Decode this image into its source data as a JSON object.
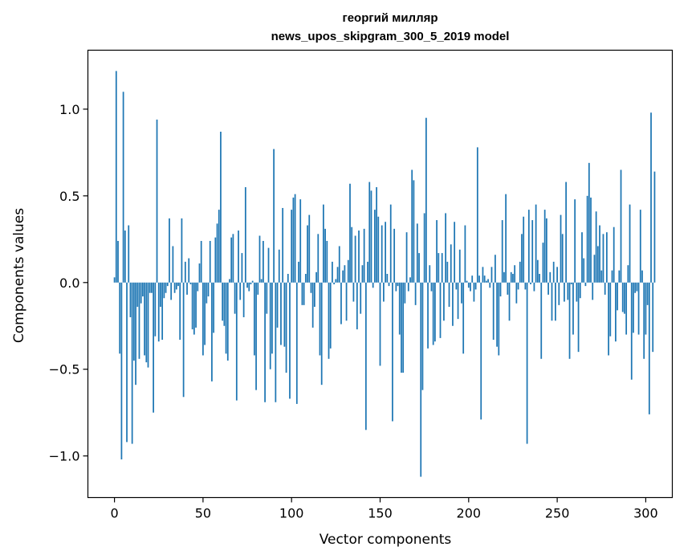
{
  "chart_data": {
    "type": "bar",
    "title": "георгий милляр",
    "subtitle": "news_upos_skipgram_300_5_2019 model",
    "xlabel": "Vector components",
    "ylabel": "Components values",
    "xlim": [
      -15,
      315
    ],
    "ylim": [
      -1.24,
      1.34
    ],
    "xticks": [
      0,
      50,
      100,
      150,
      200,
      250,
      300
    ],
    "xtick_labels": [
      "0",
      "50",
      "100",
      "150",
      "200",
      "250",
      "300"
    ],
    "yticks": [
      -1.0,
      -0.5,
      0.0,
      0.5,
      1.0
    ],
    "ytick_labels": [
      "−1.0",
      "−0.5",
      "0.0",
      "0.5",
      "1.0"
    ],
    "grid": false,
    "bar_color": "#1f77b4",
    "x_start": 0,
    "values": [
      0.03,
      1.22,
      0.24,
      -0.41,
      -1.02,
      1.1,
      0.3,
      -0.92,
      0.33,
      -0.2,
      -0.93,
      -0.45,
      -0.59,
      -0.14,
      -0.44,
      -0.12,
      -0.08,
      -0.42,
      -0.46,
      -0.49,
      -0.06,
      -0.06,
      -0.75,
      -0.31,
      0.94,
      -0.34,
      -0.14,
      -0.33,
      -0.09,
      -0.06,
      -0.02,
      0.37,
      -0.1,
      0.21,
      -0.06,
      -0.04,
      -0.02,
      -0.33,
      0.37,
      -0.66,
      0.12,
      -0.07,
      0.14,
      -0.01,
      -0.27,
      -0.3,
      -0.26,
      -0.05,
      0.11,
      0.24,
      -0.42,
      -0.36,
      -0.12,
      -0.08,
      0.24,
      -0.57,
      -0.29,
      0.26,
      0.34,
      0.42,
      0.87,
      -0.22,
      -0.25,
      -0.41,
      -0.45,
      0.02,
      0.26,
      0.28,
      -0.18,
      -0.68,
      0.3,
      -0.1,
      0.17,
      -0.2,
      0.55,
      -0.03,
      -0.05,
      -0.01,
      0.01,
      -0.42,
      -0.62,
      -0.07,
      0.27,
      0.02,
      0.24,
      -0.69,
      -0.18,
      0.2,
      -0.5,
      -0.41,
      0.77,
      -0.69,
      -0.26,
      0.19,
      -0.36,
      0.43,
      -0.37,
      -0.52,
      0.05,
      -0.67,
      0.42,
      0.49,
      0.51,
      -0.7,
      0.12,
      0.48,
      -0.13,
      -0.13,
      0.05,
      0.33,
      0.39,
      -0.06,
      -0.26,
      -0.14,
      0.06,
      0.28,
      -0.42,
      -0.59,
      0.45,
      0.31,
      0.24,
      -0.44,
      -0.38,
      0.12,
      -0.01,
      0.02,
      0.09,
      0.21,
      -0.24,
      0.07,
      0.1,
      -0.22,
      0.13,
      0.57,
      0.32,
      -0.11,
      0.27,
      -0.27,
      0.3,
      -0.18,
      0.1,
      0.31,
      -0.85,
      0.12,
      0.58,
      0.53,
      -0.03,
      0.42,
      0.55,
      0.38,
      -0.48,
      0.33,
      -0.11,
      0.35,
      0.05,
      -0.02,
      0.45,
      -0.8,
      0.31,
      -0.05,
      -0.02,
      -0.3,
      -0.52,
      -0.52,
      -0.12,
      0.29,
      -0.05,
      0.03,
      0.65,
      0.59,
      -0.13,
      0.34,
      0.17,
      -1.12,
      -0.62,
      0.4,
      0.95,
      -0.38,
      0.1,
      -0.05,
      -0.36,
      -0.34,
      0.36,
      0.17,
      -0.32,
      0.17,
      -0.22,
      0.4,
      0.12,
      -0.14,
      0.22,
      -0.25,
      0.35,
      -0.04,
      -0.21,
      0.19,
      -0.12,
      -0.41,
      0.33,
      0.01,
      -0.03,
      -0.05,
      0.04,
      -0.11,
      -0.04,
      0.78,
      0.04,
      -0.79,
      0.09,
      0.04,
      0.01,
      0.02,
      -0.03,
      0.09,
      -0.33,
      0.16,
      -0.37,
      -0.42,
      -0.08,
      0.36,
      0.06,
      0.51,
      -0.07,
      -0.22,
      0.06,
      0.05,
      0.1,
      -0.12,
      -0.04,
      0.12,
      0.28,
      0.38,
      -0.04,
      -0.93,
      0.42,
      -0.01,
      0.36,
      -0.05,
      0.45,
      0.13,
      0.05,
      -0.44,
      0.23,
      0.42,
      0.37,
      -0.07,
      0.06,
      -0.22,
      0.12,
      -0.22,
      0.09,
      -0.13,
      0.39,
      0.28,
      -0.11,
      0.58,
      -0.1,
      -0.44,
      -0.01,
      -0.3,
      0.48,
      -0.11,
      -0.4,
      -0.09,
      0.29,
      0.14,
      -0.02,
      0.5,
      0.69,
      0.49,
      -0.1,
      0.16,
      0.41,
      0.21,
      0.33,
      0.07,
      0.28,
      -0.07,
      0.29,
      -0.42,
      -0.31,
      0.07,
      0.32,
      -0.34,
      -0.16,
      0.07,
      0.65,
      -0.17,
      -0.18,
      -0.3,
      0.1,
      0.45,
      -0.56,
      -0.29,
      -0.06,
      -0.05,
      -0.3,
      0.42,
      0.07,
      -0.44,
      -0.3,
      -0.13,
      -0.76,
      0.98,
      -0.4,
      0.64
    ]
  }
}
